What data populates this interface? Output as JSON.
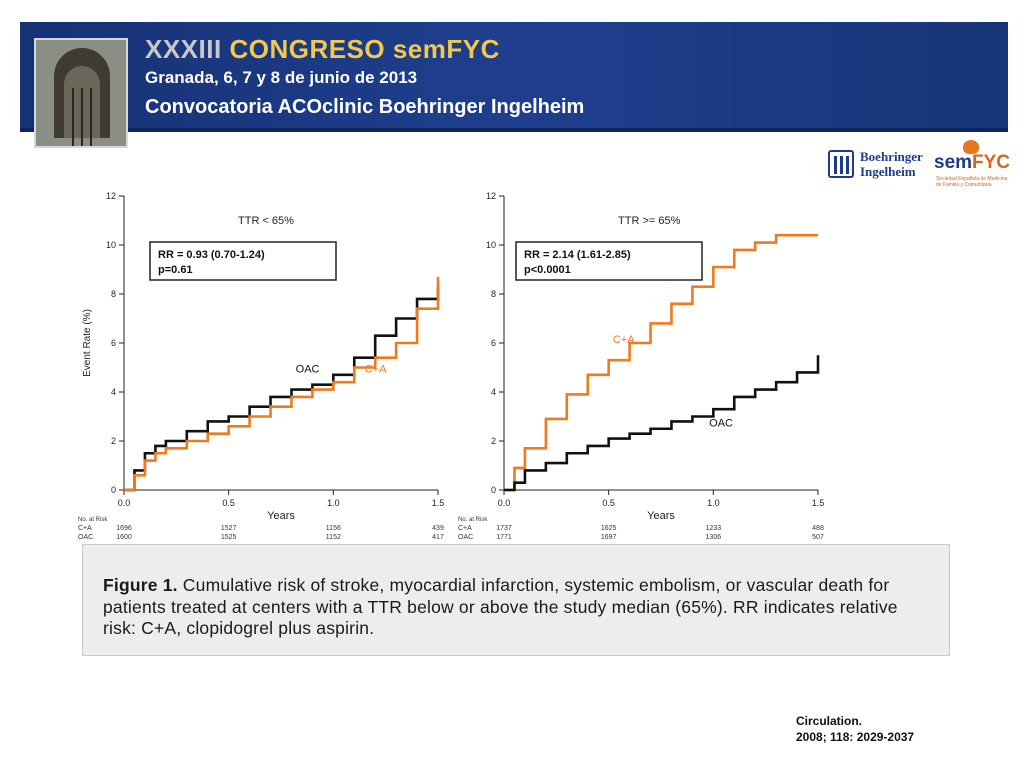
{
  "header": {
    "line1_prefix": "XXXIII",
    "line1_main": "CONGRESO semFYC",
    "line2": "Granada, 6, 7 y 8 de junio de 2013",
    "line3": "Convocatoria ACOclinic Boehringer Ingelheim"
  },
  "logos": {
    "bi_line1": "Boehringer",
    "bi_line2": "Ingelheim",
    "semfyc_a": "sem",
    "semfyc_b": "FYC",
    "semfyc_sub": "Sociedad Española de Medicina de Familia y Comunitaria"
  },
  "colors": {
    "oac": "#111111",
    "ca": "#f07a1e",
    "banner": "#1d3b87"
  },
  "chart_data": [
    {
      "type": "line",
      "title": "TTR < 65%",
      "xlabel": "Years",
      "ylabel": "Event Rate (%)",
      "xlim": [
        0,
        1.5
      ],
      "ylim": [
        0,
        12
      ],
      "x_ticks": [
        "0.0",
        "0.5",
        "1.0",
        "1.5"
      ],
      "y_ticks": [
        "0",
        "2",
        "4",
        "6",
        "8",
        "10",
        "12"
      ],
      "annotation": [
        "RR = 0.93 (0.70-1.24)",
        "p=0.61"
      ],
      "series": [
        {
          "name": "OAC",
          "color": "#111111",
          "x": [
            0,
            0.05,
            0.1,
            0.15,
            0.2,
            0.3,
            0.4,
            0.5,
            0.6,
            0.7,
            0.8,
            0.9,
            1.0,
            1.1,
            1.2,
            1.3,
            1.4,
            1.5
          ],
          "y": [
            0,
            0.8,
            1.5,
            1.8,
            2.0,
            2.4,
            2.8,
            3.0,
            3.4,
            3.8,
            4.1,
            4.3,
            4.7,
            5.4,
            6.3,
            7.0,
            7.8,
            8.3
          ]
        },
        {
          "name": "C+A",
          "color": "#f07a1e",
          "x": [
            0,
            0.05,
            0.1,
            0.15,
            0.2,
            0.3,
            0.4,
            0.5,
            0.6,
            0.7,
            0.8,
            0.9,
            1.0,
            1.1,
            1.2,
            1.3,
            1.4,
            1.5
          ],
          "y": [
            0,
            0.6,
            1.2,
            1.5,
            1.7,
            2.0,
            2.3,
            2.6,
            3.0,
            3.4,
            3.8,
            4.1,
            4.4,
            5.0,
            5.4,
            6.0,
            7.4,
            8.7
          ]
        }
      ],
      "risk_table": {
        "header": "No. at Risk",
        "rows": [
          {
            "label": "C+A",
            "values": [
              "1696",
              "1527",
              "1156",
              "439"
            ]
          },
          {
            "label": "OAC",
            "values": [
              "1600",
              "1525",
              "1152",
              "417"
            ]
          }
        ]
      }
    },
    {
      "type": "line",
      "title": "TTR >= 65%",
      "xlabel": "Years",
      "ylabel": "",
      "xlim": [
        0,
        1.5
      ],
      "ylim": [
        0,
        12
      ],
      "x_ticks": [
        "0.0",
        "0.5",
        "1.0",
        "1.5"
      ],
      "y_ticks": [
        "0",
        "2",
        "4",
        "6",
        "8",
        "10",
        "12"
      ],
      "annotation": [
        "RR = 2.14 (1.61-2.85)",
        "p<0.0001"
      ],
      "series": [
        {
          "name": "C+A",
          "color": "#f07a1e",
          "x": [
            0,
            0.05,
            0.1,
            0.2,
            0.3,
            0.4,
            0.5,
            0.6,
            0.7,
            0.8,
            0.9,
            1.0,
            1.1,
            1.2,
            1.3,
            1.4,
            1.5
          ],
          "y": [
            0,
            0.9,
            1.7,
            2.9,
            3.9,
            4.7,
            5.3,
            6.0,
            6.8,
            7.6,
            8.3,
            9.1,
            9.8,
            10.1,
            10.4,
            10.4,
            10.4
          ]
        },
        {
          "name": "OAC",
          "color": "#111111",
          "x": [
            0,
            0.05,
            0.1,
            0.2,
            0.3,
            0.4,
            0.5,
            0.6,
            0.7,
            0.8,
            0.9,
            1.0,
            1.1,
            1.2,
            1.3,
            1.4,
            1.5
          ],
          "y": [
            0,
            0.3,
            0.8,
            1.1,
            1.5,
            1.8,
            2.1,
            2.3,
            2.5,
            2.8,
            3.0,
            3.3,
            3.8,
            4.1,
            4.4,
            4.8,
            5.5
          ]
        }
      ],
      "risk_table": {
        "header": "No. at Risk",
        "rows": [
          {
            "label": "C+A",
            "values": [
              "1737",
              "1625",
              "1233",
              "488"
            ]
          },
          {
            "label": "OAC",
            "values": [
              "1771",
              "1697",
              "1306",
              "507"
            ]
          }
        ]
      }
    }
  ],
  "caption": {
    "figure_label": "Figure 1.",
    "text": "Cumulative risk of stroke, myocardial infarction, systemic embolism, or vascular death for patients treated at centers with a TTR below or above the study median (65%). RR indicates relative risk: C+A, clopidogrel plus aspirin."
  },
  "citation": {
    "line1": "Circulation.",
    "line2": "2008; 118: 2029-2037"
  }
}
